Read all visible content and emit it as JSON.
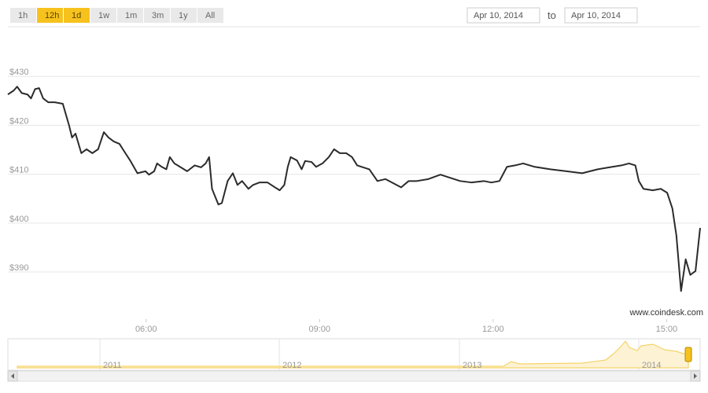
{
  "range_buttons": {
    "labels": [
      "1h",
      "12h",
      "1d",
      "1w",
      "1m",
      "3m",
      "1y",
      "All"
    ],
    "active": [
      false,
      true,
      true,
      false,
      false,
      false,
      false,
      false
    ]
  },
  "date_range": {
    "from": "Apr 10, 2014",
    "separator": "to",
    "to": "Apr 10, 2014"
  },
  "watermark": "www.coindesk.com",
  "navigator": {
    "year_labels": [
      "2011",
      "2012",
      "2013",
      "2014"
    ]
  },
  "chart_data": {
    "type": "line",
    "color": "#2b2b2b",
    "grid": true,
    "x": [
      3.61,
      3.71,
      3.77,
      3.85,
      3.95,
      4.01,
      4.08,
      4.15,
      4.22,
      4.31,
      4.42,
      4.56,
      4.67,
      4.72,
      4.78,
      4.88,
      4.97,
      5.07,
      5.17,
      5.27,
      5.35,
      5.44,
      5.54,
      5.62,
      5.73,
      5.85,
      5.99,
      6.05,
      6.14,
      6.19,
      6.27,
      6.35,
      6.41,
      6.49,
      6.6,
      6.71,
      6.84,
      6.95,
      7.03,
      7.09,
      7.14,
      7.25,
      7.31,
      7.41,
      7.5,
      7.58,
      7.66,
      7.77,
      7.85,
      7.96,
      8.1,
      8.23,
      8.31,
      8.39,
      8.45,
      8.5,
      8.61,
      8.69,
      8.75,
      8.86,
      8.94,
      9.05,
      9.16,
      9.25,
      9.35,
      9.46,
      9.56,
      9.65,
      9.86,
      10.0,
      10.14,
      10.41,
      10.54,
      10.68,
      10.88,
      11.09,
      11.22,
      11.43,
      11.63,
      11.84,
      11.97,
      12.11,
      12.24,
      12.38,
      12.52,
      12.72,
      12.99,
      13.27,
      13.54,
      13.81,
      14.01,
      14.22,
      14.35,
      14.46,
      14.52,
      14.6,
      14.76,
      14.9,
      15.01,
      15.1,
      15.17,
      15.25,
      15.33,
      15.41,
      15.5,
      15.58
    ],
    "values": [
      426.3,
      427.1,
      427.9,
      426.6,
      426.3,
      425.5,
      427.4,
      427.6,
      425.5,
      424.7,
      424.7,
      424.4,
      419.9,
      417.5,
      418.3,
      414.3,
      415.1,
      414.3,
      415.1,
      418.6,
      417.5,
      416.7,
      416.2,
      414.7,
      412.7,
      410.2,
      410.6,
      409.9,
      410.6,
      412.2,
      411.5,
      411.0,
      413.5,
      412.2,
      411.4,
      410.6,
      411.8,
      411.4,
      412.2,
      413.5,
      407.0,
      403.8,
      404.1,
      408.6,
      410.2,
      407.8,
      408.6,
      407.0,
      407.8,
      408.3,
      408.3,
      407.3,
      406.7,
      407.8,
      411.5,
      413.5,
      412.8,
      411.0,
      412.7,
      412.5,
      411.5,
      412.2,
      413.5,
      415.1,
      414.3,
      414.3,
      413.5,
      411.8,
      411.0,
      408.6,
      409.0,
      407.3,
      408.6,
      408.6,
      409.0,
      409.9,
      409.4,
      408.6,
      408.3,
      408.6,
      408.3,
      408.6,
      411.5,
      411.8,
      412.2,
      411.5,
      411.0,
      410.6,
      410.2,
      411.0,
      411.4,
      411.8,
      412.2,
      411.8,
      408.6,
      407.0,
      406.7,
      407.0,
      406.2,
      403.0,
      397.4,
      386.1,
      392.6,
      389.4,
      390.2,
      399.0
    ],
    "xlim": [
      3.61,
      15.58
    ],
    "xticks": [
      {
        "value": 6,
        "label": "06:00"
      },
      {
        "value": 9,
        "label": "09:00"
      },
      {
        "value": 12,
        "label": "12:00"
      },
      {
        "value": 15,
        "label": "15:00"
      }
    ],
    "ylim": [
      381,
      440
    ],
    "yticks": [
      {
        "value": 390,
        "label": "$390"
      },
      {
        "value": 400,
        "label": "$400"
      },
      {
        "value": 410,
        "label": "$410"
      },
      {
        "value": 420,
        "label": "$420"
      },
      {
        "value": 430,
        "label": "$430"
      }
    ]
  }
}
